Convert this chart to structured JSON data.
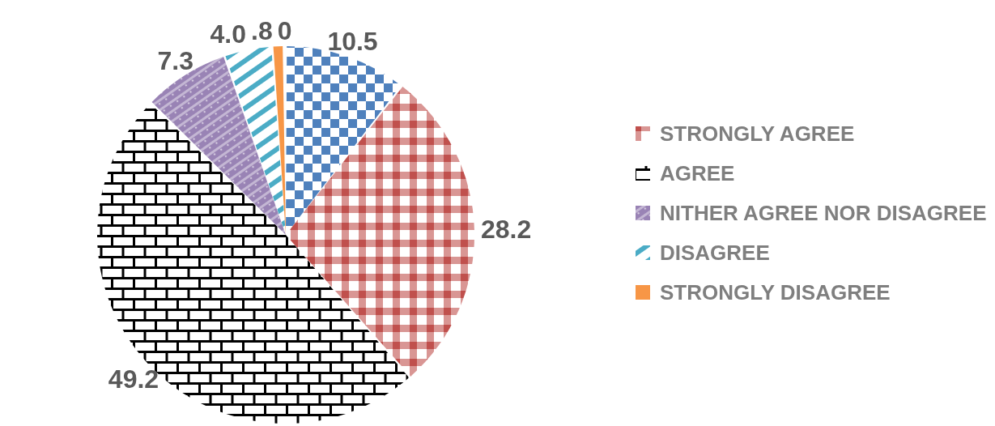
{
  "chart_data": {
    "type": "pie",
    "categories": [
      null,
      "STRONGLY AGREE",
      "AGREE",
      "NITHER AGREE NOR DISAGREE",
      "DISAGREE",
      "STRONGLY DISAGREE",
      null
    ],
    "values": [
      10.5,
      28.2,
      49.2,
      7.3,
      4.0,
      0.8,
      0
    ],
    "colors": [
      "#4f81bd",
      "#c0504d",
      "#000000",
      "#8064a2",
      "#4bacc6",
      "#f79646",
      "#9bbb59"
    ],
    "value_labels": [
      "10.5",
      "28.2",
      "49.2",
      "7.3",
      "4.0",
      ".8",
      "0"
    ],
    "legend": "right"
  }
}
